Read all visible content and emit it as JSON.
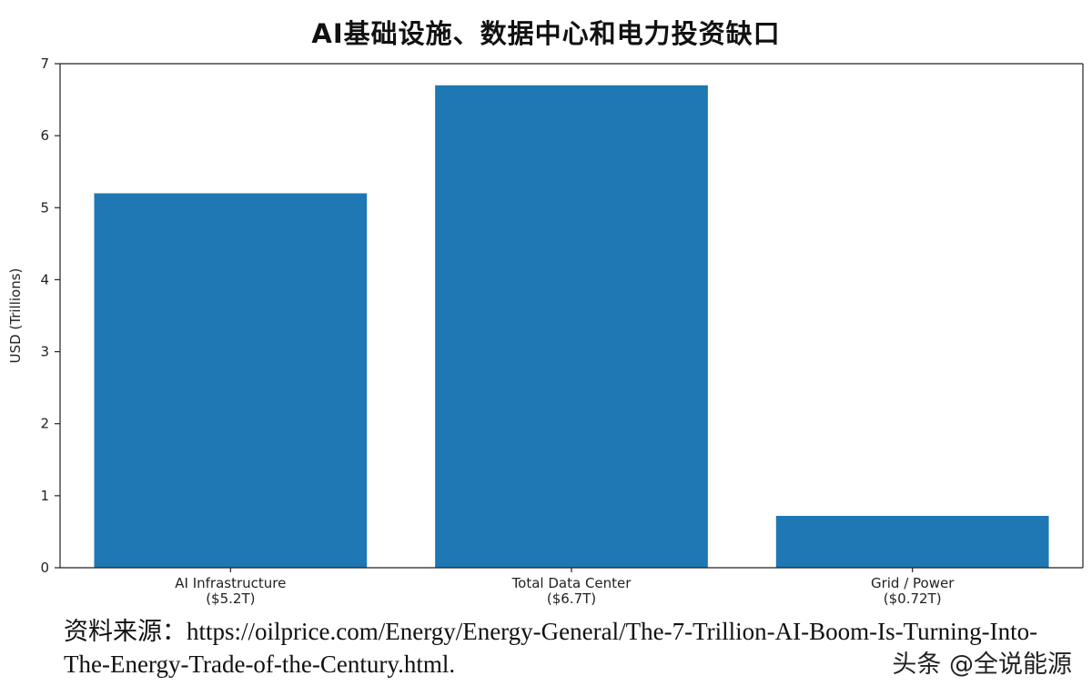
{
  "chart_data": {
    "type": "bar",
    "title": "AI基础设施、数据中心和电力投资缺口",
    "xlabel": "",
    "ylabel": "USD (Trillions)",
    "categories": [
      [
        "AI Infrastructure",
        "($5.2T)"
      ],
      [
        "Total Data Center",
        "($6.7T)"
      ],
      [
        "Grid / Power",
        "($0.72T)"
      ]
    ],
    "values": [
      5.2,
      6.7,
      0.72
    ],
    "ylim": [
      0,
      7
    ],
    "yticks": [
      0,
      1,
      2,
      3,
      4,
      5,
      6,
      7
    ],
    "bar_color": "#1f77b4",
    "grid": false,
    "legend": "none"
  },
  "source": {
    "text": "资料来源：https://oilprice.com/Energy/Energy-General/The-7-Trillion-AI-Boom-Is-Turning-Into-The-Energy-Trade-of-the-Century.html."
  },
  "watermark": {
    "text": "头条 @全说能源"
  }
}
